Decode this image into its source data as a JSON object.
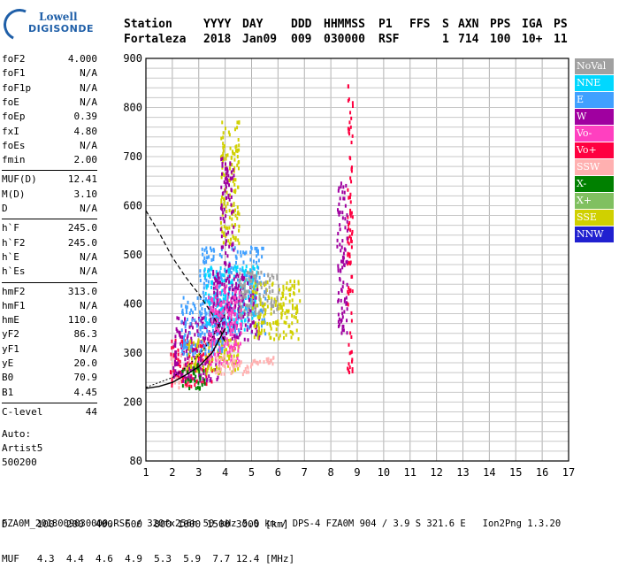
{
  "logo": {
    "line1": "Lowell",
    "line2": "DIGISONDE"
  },
  "header": {
    "labels": [
      "Station",
      "YYYY",
      "DAY",
      "DDD",
      "HHMMSS",
      "P1",
      "FFS",
      "S",
      "AXN",
      "PPS",
      "IGA",
      "PS"
    ],
    "values": [
      "Fortaleza",
      "2018",
      "Jan09",
      "009",
      "030000",
      "RSF",
      "",
      "1",
      "714",
      "100",
      "10+",
      "11"
    ]
  },
  "params": [
    {
      "key": "foF2",
      "value": "4.000"
    },
    {
      "key": "foF1",
      "value": "N/A"
    },
    {
      "key": "foF1p",
      "value": "N/A"
    },
    {
      "key": "foE",
      "value": "N/A"
    },
    {
      "key": "foEp",
      "value": "0.39"
    },
    {
      "key": "fxI",
      "value": "4.80"
    },
    {
      "key": "foEs",
      "value": "N/A"
    },
    {
      "key": "fmin",
      "value": "2.00"
    },
    {
      "key": "MUF(D)",
      "value": "12.41"
    },
    {
      "key": "M(D)",
      "value": "3.10"
    },
    {
      "key": "D",
      "value": "N/A"
    },
    {
      "key": "h`F",
      "value": "245.0"
    },
    {
      "key": "h`F2",
      "value": "245.0"
    },
    {
      "key": "h`E",
      "value": "N/A"
    },
    {
      "key": "h`Es",
      "value": "N/A"
    },
    {
      "key": "hmF2",
      "value": "313.0"
    },
    {
      "key": "hmF1",
      "value": "N/A"
    },
    {
      "key": "hmE",
      "value": "110.0"
    },
    {
      "key": "yF2",
      "value": "86.3"
    },
    {
      "key": "yF1",
      "value": "N/A"
    },
    {
      "key": "yE",
      "value": "20.0"
    },
    {
      "key": "B0",
      "value": "70.9"
    },
    {
      "key": "B1",
      "value": "4.45"
    },
    {
      "key": "C-level",
      "value": "44"
    }
  ],
  "auto": {
    "l1": "Auto:",
    "l2": "Artist5",
    "l3": "500200"
  },
  "muf_table": {
    "line1": "D     100  200  400  600  800 1000 1500 3000 [km]",
    "line2": "MUF   4.3  4.4  4.6  4.9  5.3  5.9  7.7 12.4 [MHz]"
  },
  "footer": "FZA0M_2018009030000.RSF / 320fx256h 50 kHz 5.0 km / DPS-4 FZA0M 904 / 3.9 S 321.6 E   Ion2Png 1.3.20",
  "legend": [
    {
      "label": "NoVal",
      "color": "#a0a0a0"
    },
    {
      "label": "NNE",
      "color": "#00d8ff"
    },
    {
      "label": "E",
      "color": "#40a0ff"
    },
    {
      "label": "W",
      "color": "#a000a0"
    },
    {
      "label": "Vo-",
      "color": "#ff40c0"
    },
    {
      "label": "Vo+",
      "color": "#ff0040"
    },
    {
      "label": "SSW",
      "color": "#ffb0b0"
    },
    {
      "label": "X-",
      "color": "#008000"
    },
    {
      "label": "X+",
      "color": "#80c060"
    },
    {
      "label": "SSE",
      "color": "#d0d000"
    },
    {
      "label": "NNW",
      "color": "#2020d0"
    }
  ],
  "chart_data": {
    "type": "scatter",
    "xlim": [
      1,
      17
    ],
    "ylim": [
      80,
      900
    ],
    "x_ticks": [
      1,
      2,
      3,
      4,
      5,
      6,
      7,
      8,
      9,
      10,
      11,
      12,
      13,
      14,
      15,
      16,
      17
    ],
    "y_ticks": [
      80,
      200,
      300,
      400,
      500,
      600,
      700,
      800,
      900
    ],
    "grid": true,
    "echo_clusters": [
      {
        "fmin": 1.9,
        "fmax": 2.7,
        "hmin": 230,
        "hmax": 300,
        "color": "SSW"
      },
      {
        "fmin": 1.9,
        "fmax": 3.5,
        "hmin": 235,
        "hmax": 330,
        "color": "Vo+"
      },
      {
        "fmin": 2.0,
        "fmax": 3.8,
        "hmin": 245,
        "hmax": 380,
        "color": "W"
      },
      {
        "fmin": 2.5,
        "fmax": 4.5,
        "hmin": 260,
        "hmax": 330,
        "color": "SSE"
      },
      {
        "fmin": 2.3,
        "fmax": 4.0,
        "hmin": 300,
        "hmax": 420,
        "color": "E"
      },
      {
        "fmin": 3.0,
        "fmax": 5.5,
        "hmin": 340,
        "hmax": 520,
        "color": "E"
      },
      {
        "fmin": 3.2,
        "fmax": 5.2,
        "hmin": 350,
        "hmax": 480,
        "color": "NNE"
      },
      {
        "fmin": 3.5,
        "fmax": 5.3,
        "hmin": 330,
        "hmax": 470,
        "color": "W"
      },
      {
        "fmin": 3.3,
        "fmax": 4.6,
        "hmin": 280,
        "hmax": 440,
        "color": "Vo-"
      },
      {
        "fmin": 3.6,
        "fmax": 5.0,
        "hmin": 260,
        "hmax": 300,
        "color": "SSW"
      },
      {
        "fmin": 5.0,
        "fmax": 5.8,
        "hmin": 280,
        "hmax": 295,
        "color": "SSW"
      },
      {
        "fmin": 3.8,
        "fmax": 4.5,
        "hmin": 520,
        "hmax": 780,
        "color": "SSE"
      },
      {
        "fmin": 3.8,
        "fmax": 4.3,
        "hmin": 480,
        "hmax": 700,
        "color": "W"
      },
      {
        "fmin": 5.0,
        "fmax": 6.8,
        "hmin": 330,
        "hmax": 450,
        "color": "SSE"
      },
      {
        "fmin": 4.5,
        "fmax": 6.0,
        "hmin": 380,
        "hmax": 470,
        "color": "NoVal"
      },
      {
        "fmin": 2.3,
        "fmax": 3.2,
        "hmin": 230,
        "hmax": 280,
        "color": "X-"
      },
      {
        "fmin": 8.6,
        "fmax": 8.8,
        "hmin": 250,
        "hmax": 850,
        "color": "Vo+"
      },
      {
        "fmin": 8.2,
        "fmax": 8.6,
        "hmin": 340,
        "hmax": 650,
        "color": "W"
      }
    ],
    "profile_dashed": [
      [
        1.0,
        590
      ],
      [
        1.5,
        545
      ],
      [
        2.0,
        495
      ],
      [
        2.5,
        455
      ],
      [
        3.0,
        420
      ],
      [
        3.5,
        380
      ],
      [
        3.8,
        350
      ],
      [
        4.0,
        320
      ]
    ],
    "profile_solid": [
      [
        1.0,
        228
      ],
      [
        1.5,
        232
      ],
      [
        2.0,
        240
      ],
      [
        2.5,
        255
      ],
      [
        3.0,
        272
      ],
      [
        3.5,
        300
      ],
      [
        3.8,
        330
      ],
      [
        4.0,
        350
      ]
    ],
    "profile_dotted": [
      [
        1.0,
        230
      ],
      [
        2.0,
        250
      ],
      [
        2.5,
        270
      ],
      [
        3.0,
        295
      ],
      [
        3.5,
        330
      ],
      [
        4.0,
        380
      ]
    ]
  }
}
